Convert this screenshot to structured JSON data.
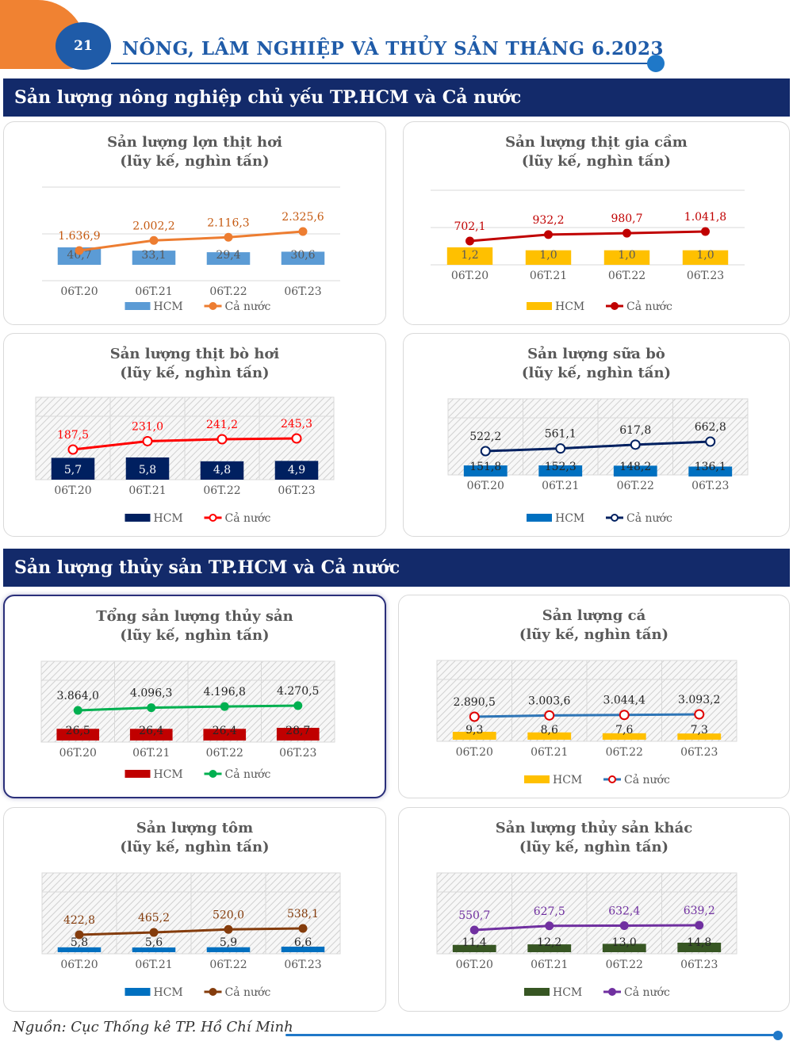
{
  "header": {
    "page_number": "21",
    "title": "NÔNG, LÂM NGHIỆP VÀ THỦY SẢN THÁNG 6.2023"
  },
  "sections": {
    "agri": "Sản lượng nông nghiệp chủ yếu TP.HCM và Cả nước",
    "fish": "Sản lượng thủy sản TP.HCM và Cả nước"
  },
  "footer": {
    "source": "Nguồn: Cục Thống kê TP. Hồ Chí Minh"
  },
  "chart_data": [
    {
      "id": "pork",
      "type": "bar+line",
      "title": "Sản lượng lợn thịt hơi",
      "subtitle": "(lũy kế, nghìn tấn)",
      "categories": [
        "06T.20",
        "06T.21",
        "06T.22",
        "06T.23"
      ],
      "series": [
        {
          "name": "HCM",
          "type": "bar",
          "values": [
            40.7,
            33.1,
            29.4,
            30.6
          ],
          "labels": [
            "40,7",
            "33,1",
            "29,4",
            "30,6"
          ],
          "color": "#5b9bd5"
        },
        {
          "name": "Cả nước",
          "type": "line",
          "values": [
            1636.9,
            2002.2,
            2116.3,
            2325.6
          ],
          "labels": [
            "1.636,9",
            "2.002,2",
            "2.116,3",
            "2.325,6"
          ],
          "color": "#ed7d31"
        }
      ],
      "bar_label_color": "#595959",
      "line_label_color": "#c55a11",
      "marker": "filled",
      "pattern": false
    },
    {
      "id": "poultry",
      "type": "bar+line",
      "title": "Sản lượng thịt gia cầm",
      "subtitle": "(lũy kế, nghìn tấn)",
      "categories": [
        "06T.20",
        "06T.21",
        "06T.22",
        "06T.23"
      ],
      "series": [
        {
          "name": "HCM",
          "type": "bar",
          "values": [
            1.2,
            1.0,
            1.0,
            1.0
          ],
          "labels": [
            "1,2",
            "1,0",
            "1,0",
            "1,0"
          ],
          "color": "#ffc000"
        },
        {
          "name": "Cả nước",
          "type": "line",
          "values": [
            702.1,
            932.2,
            980.7,
            1041.8
          ],
          "labels": [
            "702,1",
            "932,2",
            "980,7",
            "1.041,8"
          ],
          "color": "#c00000"
        }
      ],
      "bar_label_color": "#595959",
      "line_label_color": "#c00000",
      "marker": "filled",
      "pattern": false
    },
    {
      "id": "beef",
      "type": "bar+line",
      "title": "Sản lượng thịt bò hơi",
      "subtitle": "(lũy kế, nghìn tấn)",
      "categories": [
        "06T.20",
        "06T.21",
        "06T.22",
        "06T.23"
      ],
      "series": [
        {
          "name": "HCM",
          "type": "bar",
          "values": [
            5.7,
            5.8,
            4.8,
            4.9
          ],
          "labels": [
            "5,7",
            "5,8",
            "4,8",
            "4,9"
          ],
          "color": "#002060"
        },
        {
          "name": "Cả nước",
          "type": "line",
          "values": [
            187.5,
            231.0,
            241.2,
            245.3
          ],
          "labels": [
            "187,5",
            "231,0",
            "241,2",
            "245,3"
          ],
          "color": "#ff0000"
        }
      ],
      "bar_label_color": "#ffffff",
      "line_label_color": "#ff0000",
      "marker": "hollow",
      "pattern": true
    },
    {
      "id": "milk",
      "type": "bar+line",
      "title": "Sản lượng sữa bò",
      "subtitle": "(lũy kế, nghìn tấn)",
      "categories": [
        "06T.20",
        "06T.21",
        "06T.22",
        "06T.23"
      ],
      "series": [
        {
          "name": "HCM",
          "type": "bar",
          "values": [
            151.8,
            152.3,
            148.2,
            136.1
          ],
          "labels": [
            "151,8",
            "152,3",
            "148,2",
            "136,1"
          ],
          "color": "#0070c0"
        },
        {
          "name": "Cả nước",
          "type": "line",
          "values": [
            522.2,
            561.1,
            617.8,
            662.8
          ],
          "labels": [
            "522,2",
            "561,1",
            "617,8",
            "662,8"
          ],
          "color": "#002060"
        }
      ],
      "bar_label_color": "#262626",
      "line_label_color": "#262626",
      "marker": "hollow",
      "pattern": true
    },
    {
      "id": "total-fish",
      "type": "bar+line",
      "title": "Tổng sản lượng thủy sản",
      "subtitle": "(lũy kế, nghìn tấn)",
      "categories": [
        "06T.20",
        "06T.21",
        "06T.22",
        "06T.23"
      ],
      "series": [
        {
          "name": "HCM",
          "type": "bar",
          "values": [
            26.5,
            26.4,
            26.4,
            28.7
          ],
          "labels": [
            "26,5",
            "26,4",
            "26,4",
            "28,7"
          ],
          "color": "#c00000"
        },
        {
          "name": "Cả nước",
          "type": "line",
          "values": [
            3864.0,
            4096.3,
            4196.8,
            4270.5
          ],
          "labels": [
            "3.864,0",
            "4.096,3",
            "4.196,8",
            "4.270,5"
          ],
          "color": "#00b050"
        }
      ],
      "bar_label_color": "#262626",
      "line_label_color": "#262626",
      "marker": "filled",
      "pattern": true
    },
    {
      "id": "fish",
      "type": "bar+line",
      "title": "Sản lượng cá",
      "subtitle": "(lũy kế, nghìn tấn)",
      "categories": [
        "06T.20",
        "06T.21",
        "06T.22",
        "06T.23"
      ],
      "series": [
        {
          "name": "HCM",
          "type": "bar",
          "values": [
            9.3,
            8.6,
            7.6,
            7.3
          ],
          "labels": [
            "9,3",
            "8,6",
            "7,6",
            "7,3"
          ],
          "color": "#ffc000"
        },
        {
          "name": "Cả nước",
          "type": "line",
          "values": [
            2890.5,
            3003.6,
            3044.4,
            3093.2
          ],
          "labels": [
            "2.890,5",
            "3.003,6",
            "3.044,4",
            "3.093,2"
          ],
          "color": "#2e75b6"
        }
      ],
      "bar_label_color": "#262626",
      "line_label_color": "#262626",
      "marker": "hollow-red",
      "pattern": true
    },
    {
      "id": "shrimp",
      "type": "bar+line",
      "title": "Sản lượng tôm",
      "subtitle": "(lũy kế, nghìn tấn)",
      "categories": [
        "06T.20",
        "06T.21",
        "06T.22",
        "06T.23"
      ],
      "series": [
        {
          "name": "HCM",
          "type": "bar",
          "values": [
            5.8,
            5.6,
            5.9,
            6.6
          ],
          "labels": [
            "5,8",
            "5,6",
            "5,9",
            "6,6"
          ],
          "color": "#0070c0"
        },
        {
          "name": "Cả nước",
          "type": "line",
          "values": [
            422.8,
            465.2,
            520.0,
            538.1
          ],
          "labels": [
            "422,8",
            "465,2",
            "520,0",
            "538,1"
          ],
          "color": "#843c0c"
        }
      ],
      "bar_label_color": "#262626",
      "line_label_color": "#843c0c",
      "marker": "filled",
      "pattern": true
    },
    {
      "id": "other-fish",
      "type": "bar+line",
      "title": "Sản lượng thủy sản khác",
      "subtitle": "(lũy kế, nghìn tấn)",
      "categories": [
        "06T.20",
        "06T.21",
        "06T.22",
        "06T.23"
      ],
      "series": [
        {
          "name": "HCM",
          "type": "bar",
          "values": [
            11.4,
            12.2,
            13.0,
            14.8
          ],
          "labels": [
            "11,4",
            "12,2",
            "13,0",
            "14,8"
          ],
          "color": "#375623"
        },
        {
          "name": "Cả nước",
          "type": "line",
          "values": [
            550.7,
            627.5,
            632.4,
            639.2
          ],
          "labels": [
            "550,7",
            "627,5",
            "632,4",
            "639,2"
          ],
          "color": "#7030a0"
        }
      ],
      "bar_label_color": "#262626",
      "line_label_color": "#7030a0",
      "marker": "filled",
      "pattern": true
    }
  ]
}
